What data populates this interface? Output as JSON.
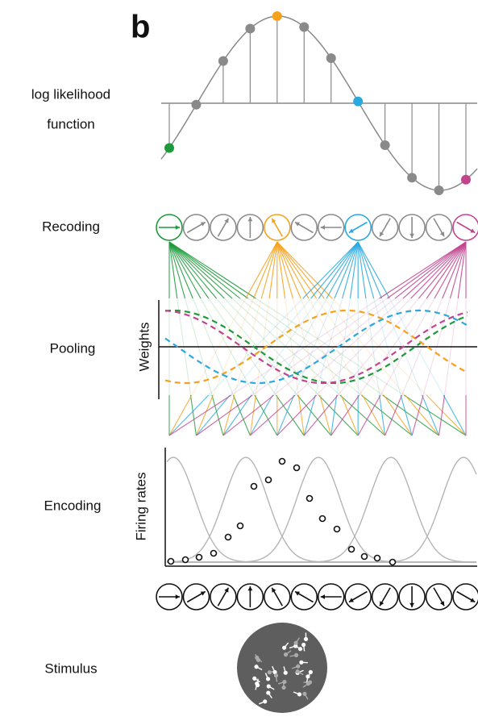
{
  "panel_label": "b",
  "rows": [
    {
      "label_lines": [
        "log likelihood",
        "function"
      ]
    },
    {
      "label_lines": [
        "Recoding"
      ]
    },
    {
      "label_lines": [
        "Pooling"
      ]
    },
    {
      "label_lines": [
        "Encoding"
      ]
    },
    {
      "label_lines": [
        "Stimulus"
      ]
    }
  ],
  "weights_axis_label": "Weights",
  "firing_axis_label": "Firing rates"
}
